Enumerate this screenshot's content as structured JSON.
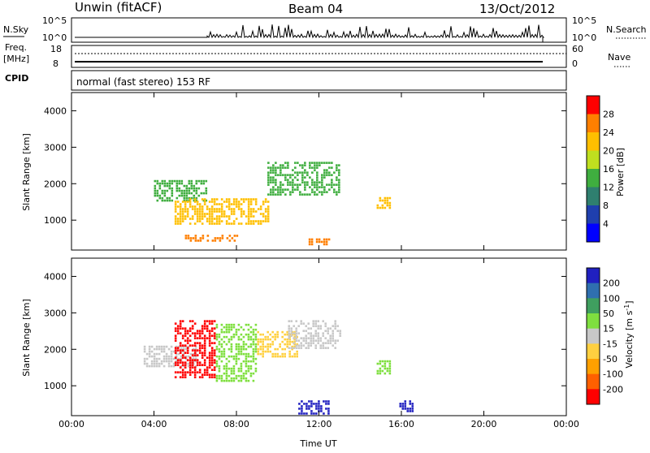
{
  "header": {
    "station": "Unwin (fitACF)",
    "beam": "Beam 04",
    "date": "13/Oct/2012"
  },
  "status_panels": {
    "nsky": {
      "label": "N.Sky",
      "ticks": [
        "10^5",
        "10^0"
      ],
      "right_ticks": [
        "10^5",
        "10^0"
      ],
      "right_label": "N.Search"
    },
    "freq": {
      "label_line1": "Freq.",
      "label_line2": "[MHz]",
      "ticks": [
        "18",
        "8"
      ],
      "right_ticks": [
        "60",
        "0"
      ],
      "right_label": "Nave"
    },
    "cpid": {
      "label": "CPID",
      "text": "normal (fast stereo) 153 RF"
    }
  },
  "chart_data": [
    {
      "type": "heatmap",
      "name": "power-panel",
      "ylabel": "Slant Range [km]",
      "xlabel": "",
      "x_ticks": [
        "00:00",
        "04:00",
        "08:00",
        "12:00",
        "16:00",
        "20:00",
        "00:00"
      ],
      "xlim_hours": [
        0,
        24
      ],
      "ylim_km": [
        180,
        4500
      ],
      "y_ticks": [
        1000,
        2000,
        3000,
        4000
      ],
      "colorbar": {
        "label": "Power [dB]",
        "range": [
          0,
          32
        ],
        "ticks": [
          4,
          8,
          12,
          16,
          20,
          24,
          28
        ],
        "colors": [
          "#0000ff",
          "#1f3fae",
          "#2f7f6f",
          "#3fae3f",
          "#bfdf1f",
          "#ffbf00",
          "#ff7f00",
          "#ff0000"
        ]
      },
      "echo_regions": [
        {
          "hours": [
            4.0,
            6.5
          ],
          "range_km": [
            1500,
            2100
          ],
          "level": 12
        },
        {
          "hours": [
            5.0,
            9.5
          ],
          "range_km": [
            900,
            1600
          ],
          "level": 22
        },
        {
          "hours": [
            5.5,
            8.0
          ],
          "range_km": [
            400,
            600
          ],
          "level": 26
        },
        {
          "hours": [
            9.5,
            13.0
          ],
          "range_km": [
            1700,
            2600
          ],
          "level": 12
        },
        {
          "hours": [
            11.5,
            12.5
          ],
          "range_km": [
            300,
            500
          ],
          "level": 24
        },
        {
          "hours": [
            14.8,
            15.4
          ],
          "range_km": [
            1300,
            1700
          ],
          "level": 22
        }
      ]
    },
    {
      "type": "heatmap",
      "name": "velocity-panel",
      "ylabel": "Slant Range [km]",
      "xlabel": "Time UT",
      "x_ticks": [
        "00:00",
        "04:00",
        "08:00",
        "12:00",
        "16:00",
        "20:00",
        "00:00"
      ],
      "xlim_hours": [
        0,
        24
      ],
      "ylim_km": [
        180,
        4500
      ],
      "y_ticks": [
        1000,
        2000,
        3000,
        4000
      ],
      "colorbar": {
        "label": "Velocity [m s^-1]",
        "label_main": "Velocity [",
        "label_unit": "m s",
        "label_exp": "-1",
        "label_end": "]",
        "range": [
          -250,
          250
        ],
        "ticks": [
          "200",
          "100",
          "50",
          "15",
          "-15",
          "-50",
          "-100",
          "-200"
        ],
        "colors": [
          "#2020c0",
          "#2f6faf",
          "#3f9f5f",
          "#7fdf3f",
          "#c8c8c8",
          "#ffd040",
          "#ffa000",
          "#ff6000",
          "#ff0000"
        ]
      },
      "echo_regions": [
        {
          "hours": [
            3.5,
            6.0
          ],
          "range_km": [
            1500,
            2100
          ],
          "level": 0
        },
        {
          "hours": [
            5.0,
            7.0
          ],
          "range_km": [
            1200,
            2800
          ],
          "level": -200
        },
        {
          "hours": [
            7.0,
            9.0
          ],
          "range_km": [
            1100,
            2700
          ],
          "level": 30
        },
        {
          "hours": [
            9.0,
            11.0
          ],
          "range_km": [
            1800,
            2500
          ],
          "level": -40
        },
        {
          "hours": [
            10.5,
            13.0
          ],
          "range_km": [
            2000,
            2800
          ],
          "level": 0
        },
        {
          "hours": [
            11.0,
            12.5
          ],
          "range_km": [
            250,
            600
          ],
          "level": 210
        },
        {
          "hours": [
            15.9,
            16.6
          ],
          "range_km": [
            300,
            600
          ],
          "level": 210
        },
        {
          "hours": [
            14.8,
            15.4
          ],
          "range_km": [
            1300,
            1700
          ],
          "level": 60
        }
      ]
    }
  ]
}
